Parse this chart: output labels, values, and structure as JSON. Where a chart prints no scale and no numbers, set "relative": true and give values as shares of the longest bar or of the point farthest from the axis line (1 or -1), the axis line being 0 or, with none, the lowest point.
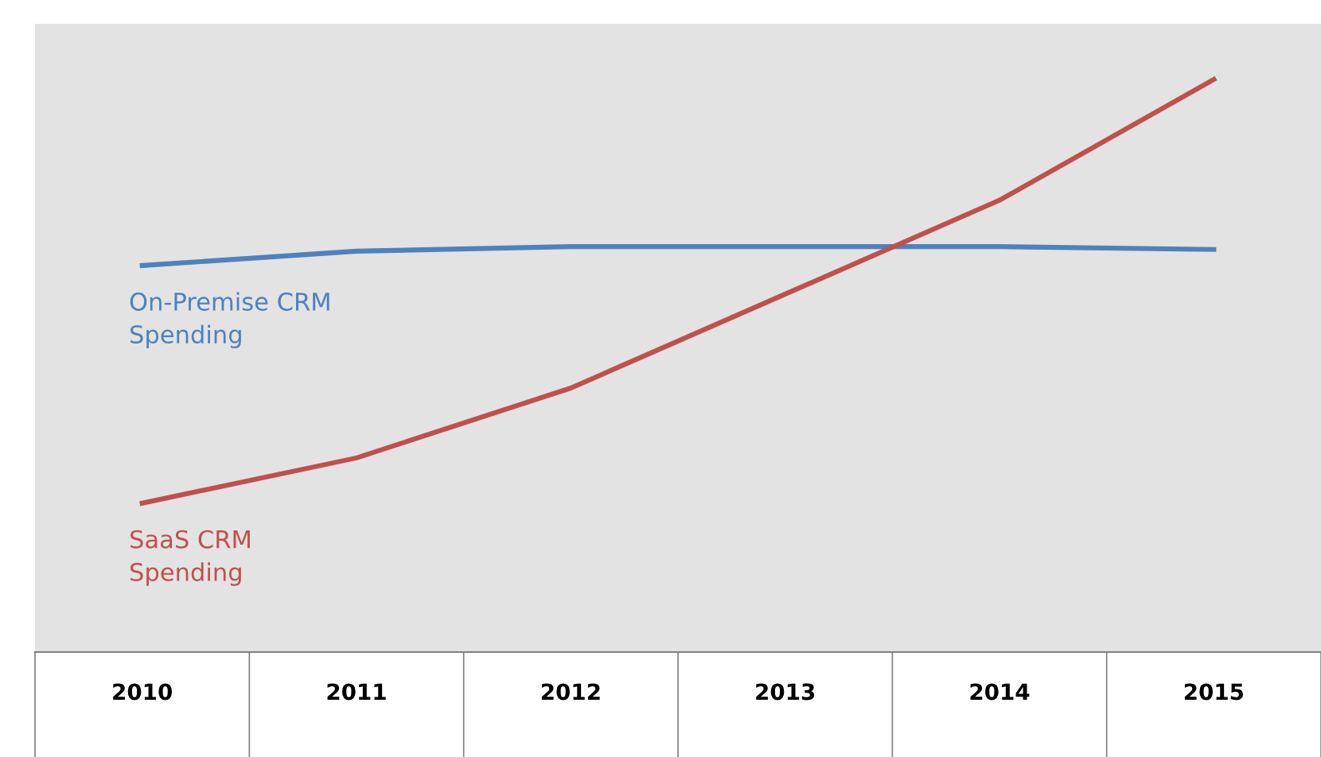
{
  "chart_data": {
    "type": "line",
    "relative": true,
    "categories": [
      "2010",
      "2011",
      "2012",
      "2013",
      "2014",
      "2015"
    ],
    "series": [
      {
        "name": "On-Premise CRM Spending",
        "color": "#4f81bd",
        "values": [
          0.675,
          0.7,
          0.708,
          0.708,
          0.708,
          0.703
        ]
      },
      {
        "name": "SaaS CRM Spending",
        "color": "#c0504d",
        "values": [
          0.26,
          0.339,
          0.461,
          0.625,
          0.789,
          1.0
        ]
      }
    ],
    "grid": false,
    "legend": false,
    "marker": "none",
    "line_style": "solid"
  }
}
